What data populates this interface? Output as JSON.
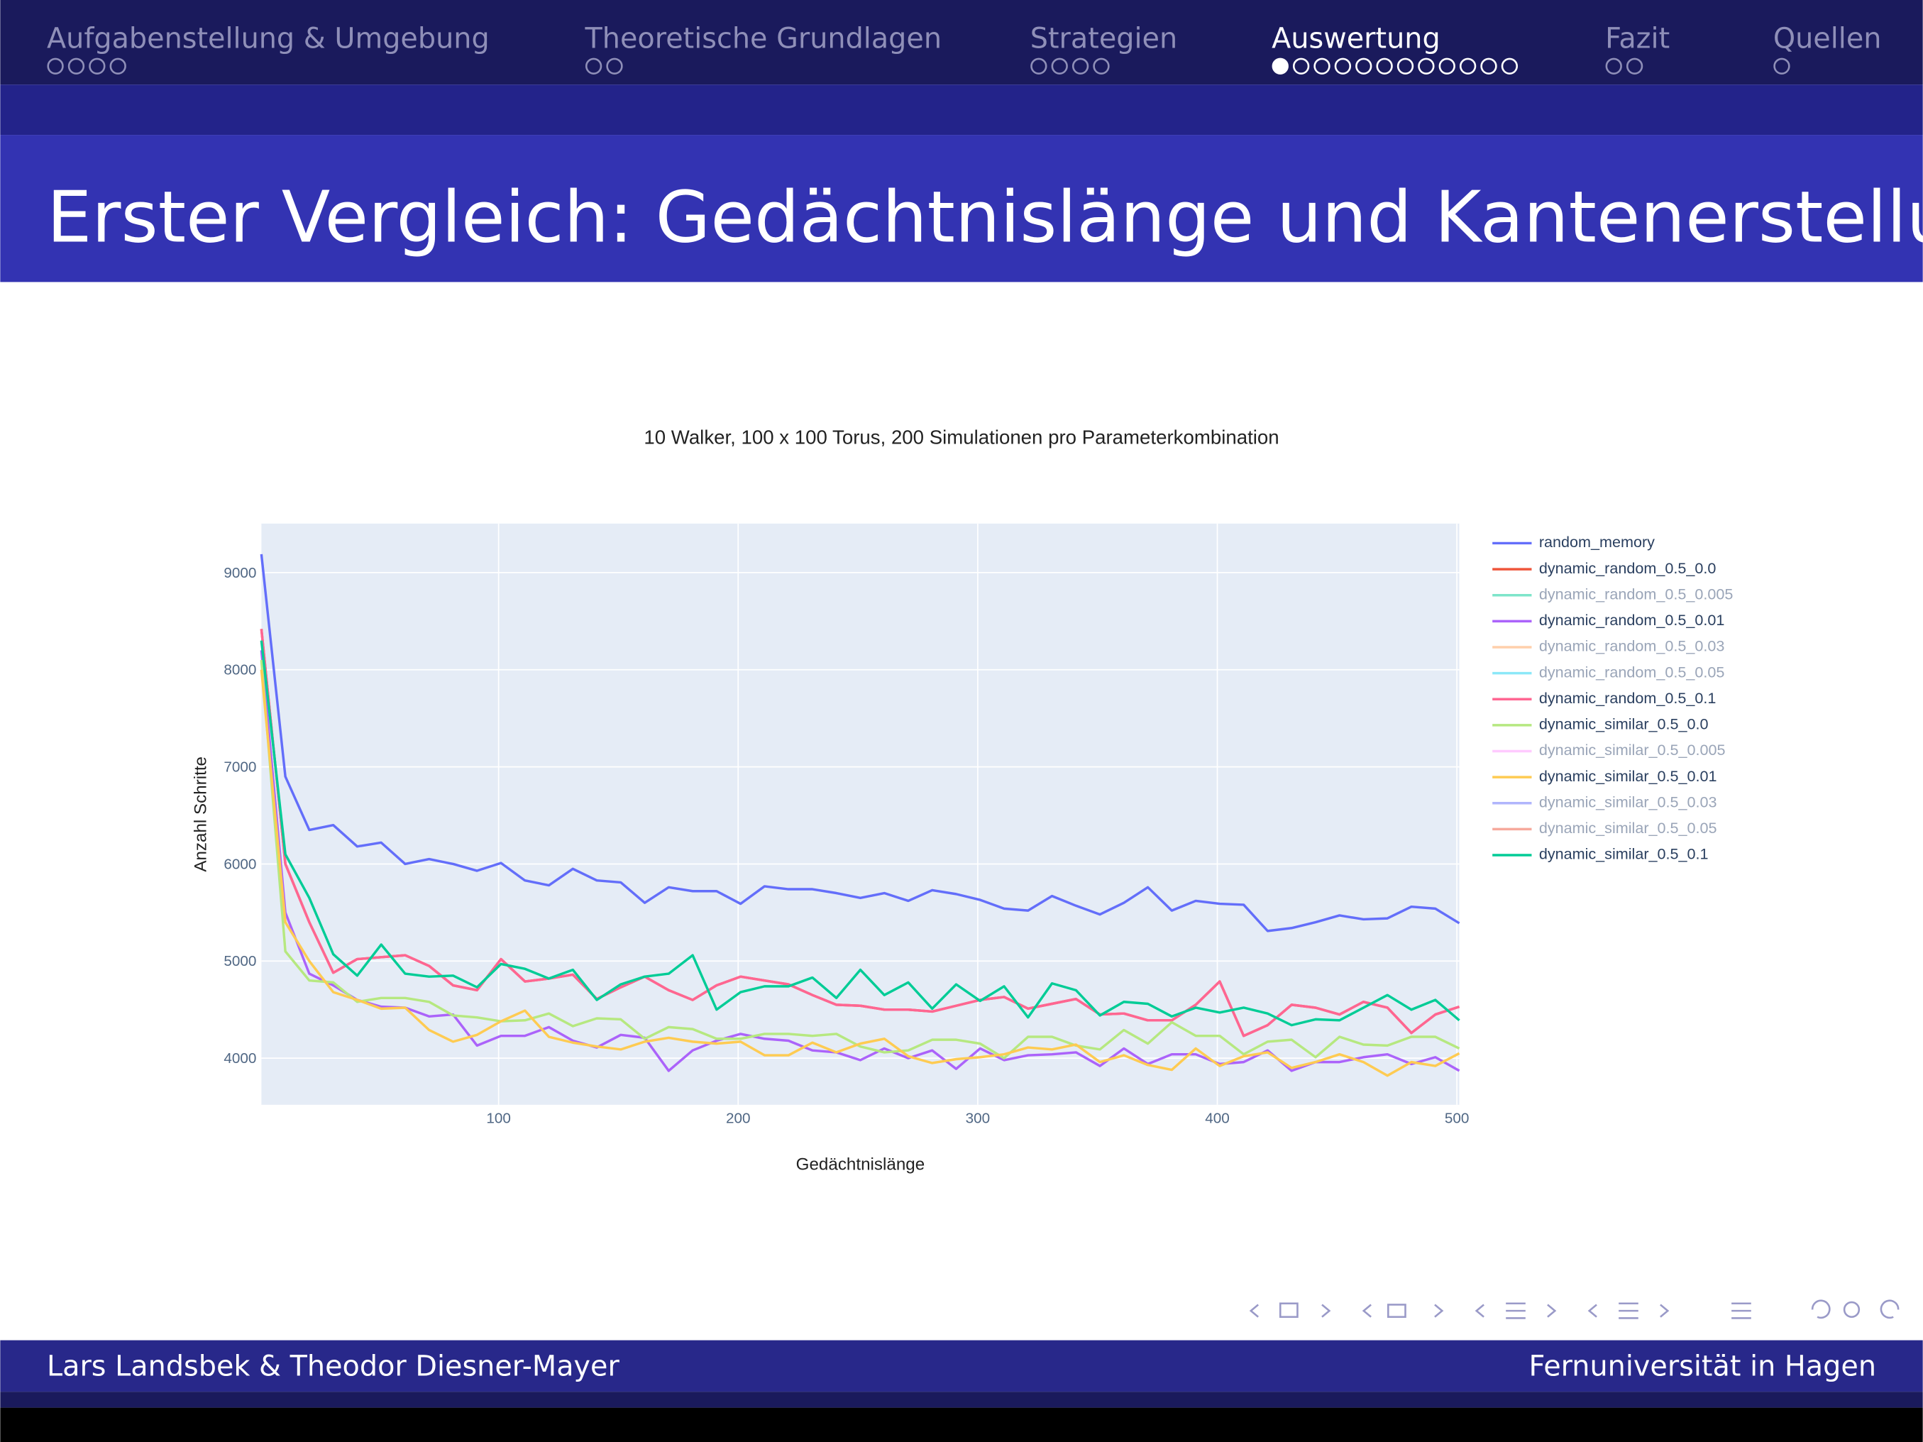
{
  "header": {
    "sections": [
      {
        "label": "Aufgabenstellung & Umgebung"
      },
      {
        "label": "Theoretische Grundlagen"
      },
      {
        "label": "Strategien"
      },
      {
        "label": "Auswertung"
      },
      {
        "label": "Fazit"
      },
      {
        "label": "Quellen"
      }
    ]
  },
  "title": "Erster Vergleich: Gedächtnislänge und Kantenerstellung",
  "chart_data": {
    "type": "line",
    "title": "10 Walker, 100 x 100 Torus, 200 Simulationen pro Parameterkombination",
    "x_label": "Gedächtnislänge",
    "y_label": "Anzahl Schritte",
    "x": [
      1,
      11,
      21,
      31,
      41,
      51,
      61,
      71,
      81,
      91,
      101,
      111,
      121,
      131,
      141,
      151,
      161,
      171,
      181,
      191,
      201,
      211,
      221,
      231,
      241,
      251,
      261,
      271,
      281,
      291,
      301,
      311,
      321,
      331,
      341,
      351,
      361,
      371,
      381,
      391,
      401,
      411,
      421,
      431,
      441,
      451,
      461,
      471,
      481,
      491,
      501
    ],
    "xlim": [
      1,
      501
    ],
    "xticks": [
      100,
      200,
      300,
      400,
      500
    ],
    "ylim": [
      3520,
      9505
    ],
    "yticks": [
      4000,
      5000,
      6000,
      7000,
      8000,
      9000
    ],
    "grid": true,
    "legend": "right",
    "series": [
      {
        "name": "random_memory",
        "color": "#636efa",
        "visible": true,
        "values": [
          9190,
          6900,
          6350,
          6400,
          6180,
          6220,
          6000,
          6050,
          6000,
          5930,
          6010,
          5830,
          5780,
          5950,
          5830,
          5810,
          5600,
          5760,
          5720,
          5720,
          5590,
          5770,
          5740,
          5740,
          5700,
          5650,
          5700,
          5620,
          5730,
          5690,
          5630,
          5540,
          5520,
          5670,
          5570,
          5480,
          5600,
          5760,
          5520,
          5620,
          5590,
          5580,
          5310,
          5340,
          5400,
          5470,
          5430,
          5440,
          5560,
          5540,
          5390
        ]
      },
      {
        "name": "dynamic_random_0.5_0.0",
        "color": "#EF553B",
        "visible": true,
        "values": [
          8420,
          6000,
          5400,
          4880,
          5020,
          5040,
          5060,
          4950,
          4750,
          4700,
          5020,
          4790,
          4820,
          4860,
          4610,
          4730,
          4840,
          4700,
          4600,
          4750,
          4840,
          4800,
          4760,
          4650,
          4550,
          4540,
          4500,
          4500,
          4480,
          4540,
          4600,
          4630,
          4510,
          4560,
          4610,
          4450,
          4460,
          4390,
          4390,
          4550,
          4790,
          4230,
          4340,
          4550,
          4520,
          4450,
          4580,
          4520,
          4260,
          4450,
          4530
        ]
      },
      {
        "name": "dynamic_random_0.5_0.005",
        "color": "#00cc96",
        "visible": false
      },
      {
        "name": "dynamic_random_0.5_0.01",
        "color": "#ab63fa",
        "visible": true,
        "values": [
          8200,
          5500,
          4870,
          4750,
          4600,
          4530,
          4520,
          4430,
          4450,
          4130,
          4230,
          4230,
          4320,
          4180,
          4110,
          4240,
          4210,
          3870,
          4080,
          4180,
          4250,
          4200,
          4180,
          4080,
          4060,
          3980,
          4100,
          4000,
          4080,
          3890,
          4100,
          3980,
          4030,
          4040,
          4060,
          3920,
          4100,
          3940,
          4040,
          4040,
          3940,
          3960,
          4080,
          3870,
          3960,
          3960,
          4010,
          4040,
          3940,
          4010,
          3870
        ]
      },
      {
        "name": "dynamic_random_0.5_0.03",
        "color": "#FFA15A",
        "visible": false
      },
      {
        "name": "dynamic_random_0.5_0.05",
        "color": "#19d3f3",
        "visible": false
      },
      {
        "name": "dynamic_random_0.5_0.1",
        "color": "#FF6692",
        "visible": true,
        "values": [
          8420,
          6000,
          5400,
          4880,
          5020,
          5040,
          5060,
          4950,
          4750,
          4700,
          5020,
          4790,
          4820,
          4860,
          4610,
          4730,
          4840,
          4700,
          4600,
          4750,
          4840,
          4800,
          4760,
          4650,
          4550,
          4540,
          4500,
          4500,
          4480,
          4540,
          4600,
          4630,
          4510,
          4560,
          4610,
          4450,
          4460,
          4390,
          4390,
          4550,
          4790,
          4230,
          4340,
          4550,
          4520,
          4450,
          4580,
          4520,
          4260,
          4450,
          4530
        ]
      },
      {
        "name": "dynamic_similar_0.5_0.0",
        "color": "#B6E880",
        "visible": true,
        "values": [
          8100,
          5100,
          4800,
          4780,
          4580,
          4620,
          4620,
          4580,
          4440,
          4420,
          4380,
          4390,
          4460,
          4330,
          4410,
          4400,
          4200,
          4320,
          4300,
          4200,
          4200,
          4250,
          4250,
          4230,
          4250,
          4120,
          4060,
          4080,
          4190,
          4190,
          4150,
          4000,
          4220,
          4220,
          4130,
          4090,
          4290,
          4150,
          4370,
          4230,
          4230,
          4040,
          4170,
          4190,
          4010,
          4220,
          4140,
          4130,
          4220,
          4220,
          4100
        ]
      },
      {
        "name": "dynamic_similar_0.5_0.005",
        "color": "#FF97FF",
        "visible": false
      },
      {
        "name": "dynamic_similar_0.5_0.01",
        "color": "#FECB52",
        "visible": true,
        "values": [
          8000,
          5400,
          5000,
          4680,
          4600,
          4510,
          4520,
          4290,
          4170,
          4240,
          4380,
          4490,
          4220,
          4160,
          4120,
          4090,
          4170,
          4210,
          4170,
          4150,
          4170,
          4030,
          4030,
          4160,
          4060,
          4150,
          4200,
          4020,
          3950,
          3990,
          4010,
          4040,
          4110,
          4090,
          4140,
          3960,
          4030,
          3930,
          3880,
          4100,
          3920,
          4020,
          4060,
          3900,
          3960,
          4040,
          3960,
          3820,
          3960,
          3920,
          4050
        ]
      },
      {
        "name": "dynamic_similar_0.5_0.03",
        "color": "#636efa",
        "visible": false
      },
      {
        "name": "dynamic_similar_0.5_0.05",
        "color": "#EF553B",
        "visible": false
      },
      {
        "name": "dynamic_similar_0.5_0.1",
        "color": "#00cc96",
        "visible": true,
        "values": [
          8300,
          6100,
          5650,
          5070,
          4850,
          5170,
          4870,
          4840,
          4850,
          4730,
          4970,
          4920,
          4820,
          4910,
          4600,
          4760,
          4840,
          4870,
          5060,
          4500,
          4680,
          4740,
          4740,
          4830,
          4620,
          4910,
          4650,
          4780,
          4510,
          4760,
          4590,
          4740,
          4420,
          4770,
          4700,
          4440,
          4580,
          4560,
          4430,
          4520,
          4470,
          4520,
          4460,
          4340,
          4400,
          4390,
          4520,
          4650,
          4500,
          4600,
          4390
        ]
      }
    ]
  },
  "footer": {
    "left": "Lars Landsbek & Theodor Diesner-Mayer",
    "right": "Fernuniversität in Hagen"
  }
}
